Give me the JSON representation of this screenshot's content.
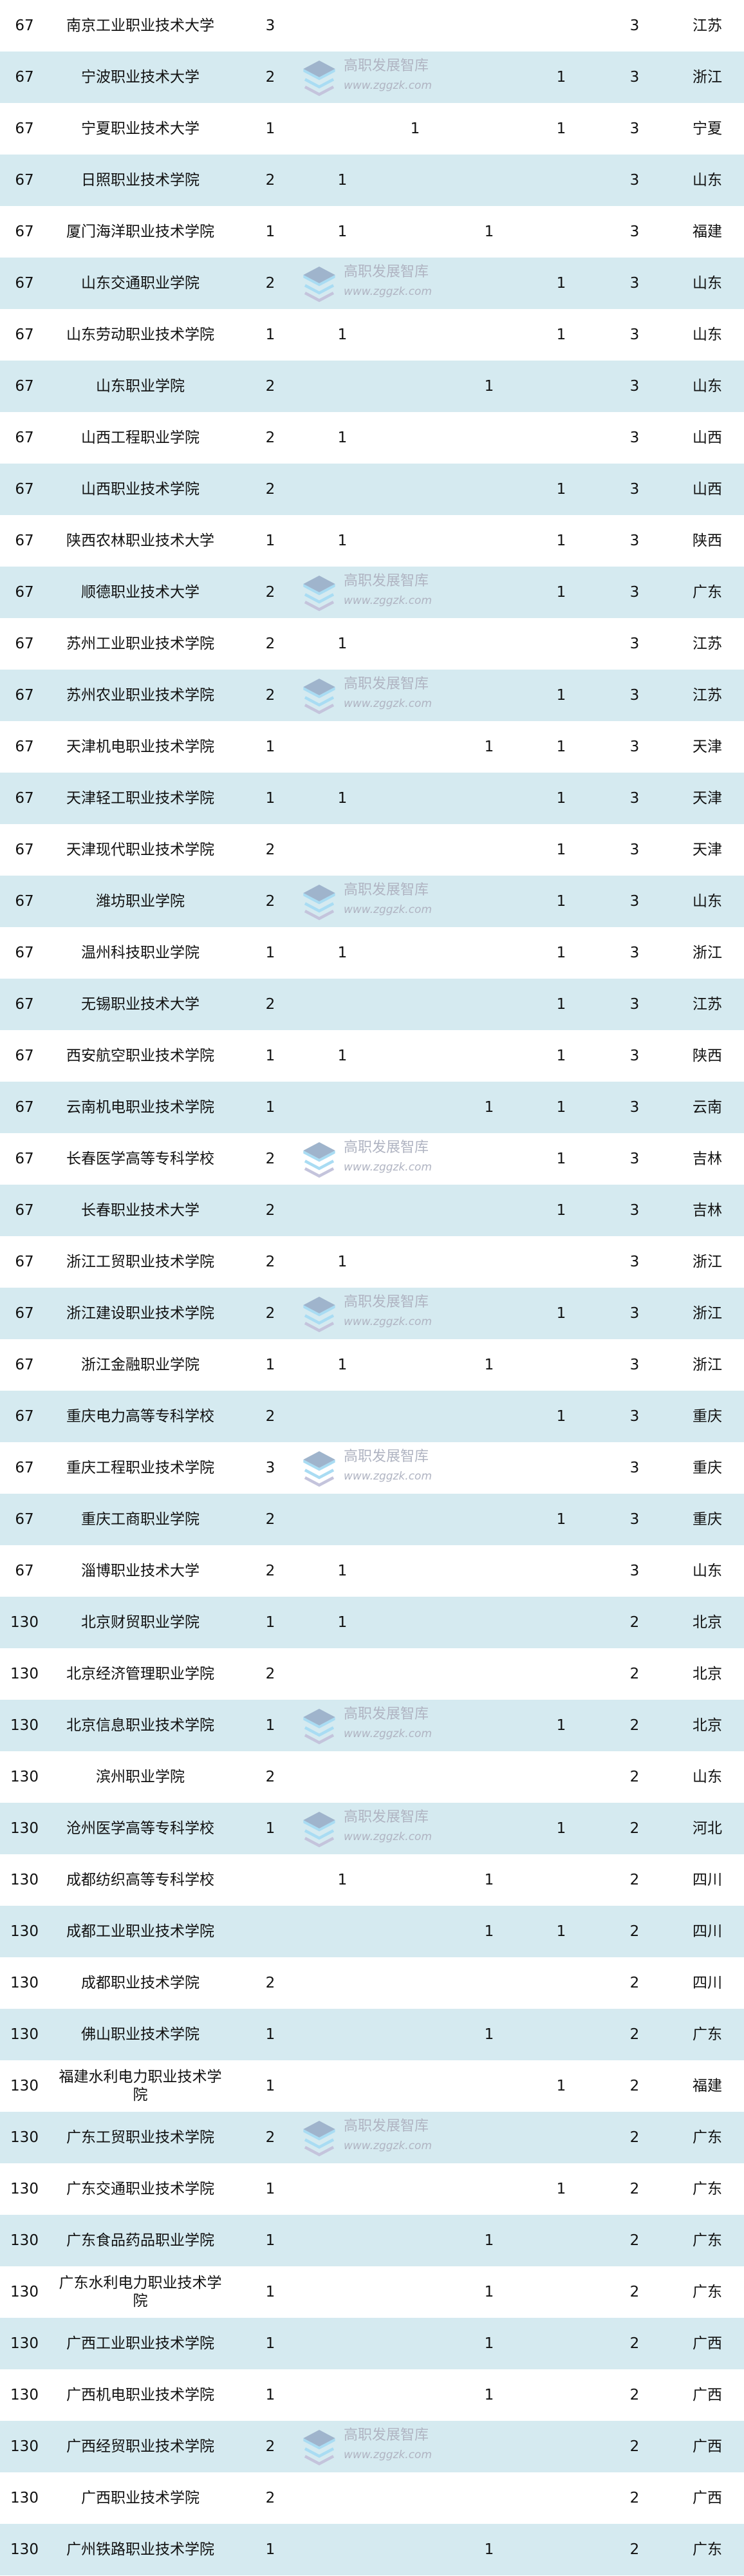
{
  "colors": {
    "row_alt": "#d5eaf0",
    "row": "#ffffff",
    "text": "#111111"
  },
  "watermark": {
    "title": "高职发展智库",
    "url": "www.zggzk.com",
    "icon": "stacked-layers-logo-icon"
  },
  "rows": [
    [
      "67",
      "南京工业职业技术大学",
      "3",
      "",
      "",
      "",
      "",
      "3",
      "江苏"
    ],
    [
      "67",
      "宁波职业技术大学",
      "2",
      "",
      "",
      "",
      "1",
      "3",
      "浙江"
    ],
    [
      "67",
      "宁夏职业技术大学",
      "1",
      "",
      "1",
      "",
      "1",
      "3",
      "宁夏"
    ],
    [
      "67",
      "日照职业技术学院",
      "2",
      "1",
      "",
      "",
      "",
      "3",
      "山东"
    ],
    [
      "67",
      "厦门海洋职业技术学院",
      "1",
      "1",
      "",
      "1",
      "",
      "3",
      "福建"
    ],
    [
      "67",
      "山东交通职业学院",
      "2",
      "",
      "",
      "",
      "1",
      "3",
      "山东"
    ],
    [
      "67",
      "山东劳动职业技术学院",
      "1",
      "1",
      "",
      "",
      "1",
      "3",
      "山东"
    ],
    [
      "67",
      "山东职业学院",
      "2",
      "",
      "",
      "1",
      "",
      "3",
      "山东"
    ],
    [
      "67",
      "山西工程职业学院",
      "2",
      "1",
      "",
      "",
      "",
      "3",
      "山西"
    ],
    [
      "67",
      "山西职业技术学院",
      "2",
      "",
      "",
      "",
      "1",
      "3",
      "山西"
    ],
    [
      "67",
      "陕西农林职业技术大学",
      "1",
      "1",
      "",
      "",
      "1",
      "3",
      "陕西"
    ],
    [
      "67",
      "顺德职业技术大学",
      "2",
      "",
      "",
      "",
      "1",
      "3",
      "广东"
    ],
    [
      "67",
      "苏州工业职业技术学院",
      "2",
      "1",
      "",
      "",
      "",
      "3",
      "江苏"
    ],
    [
      "67",
      "苏州农业职业技术学院",
      "2",
      "",
      "",
      "",
      "1",
      "3",
      "江苏"
    ],
    [
      "67",
      "天津机电职业技术学院",
      "1",
      "",
      "",
      "1",
      "1",
      "3",
      "天津"
    ],
    [
      "67",
      "天津轻工职业技术学院",
      "1",
      "1",
      "",
      "",
      "1",
      "3",
      "天津"
    ],
    [
      "67",
      "天津现代职业技术学院",
      "2",
      "",
      "",
      "",
      "1",
      "3",
      "天津"
    ],
    [
      "67",
      "潍坊职业学院",
      "2",
      "",
      "",
      "",
      "1",
      "3",
      "山东"
    ],
    [
      "67",
      "温州科技职业学院",
      "1",
      "1",
      "",
      "",
      "1",
      "3",
      "浙江"
    ],
    [
      "67",
      "无锡职业技术大学",
      "2",
      "",
      "",
      "",
      "1",
      "3",
      "江苏"
    ],
    [
      "67",
      "西安航空职业技术学院",
      "1",
      "1",
      "",
      "",
      "1",
      "3",
      "陕西"
    ],
    [
      "67",
      "云南机电职业技术学院",
      "1",
      "",
      "",
      "1",
      "1",
      "3",
      "云南"
    ],
    [
      "67",
      "长春医学高等专科学校",
      "2",
      "",
      "",
      "",
      "1",
      "3",
      "吉林"
    ],
    [
      "67",
      "长春职业技术大学",
      "2",
      "",
      "",
      "",
      "1",
      "3",
      "吉林"
    ],
    [
      "67",
      "浙江工贸职业技术学院",
      "2",
      "1",
      "",
      "",
      "",
      "3",
      "浙江"
    ],
    [
      "67",
      "浙江建设职业技术学院",
      "2",
      "",
      "",
      "",
      "1",
      "3",
      "浙江"
    ],
    [
      "67",
      "浙江金融职业学院",
      "1",
      "1",
      "",
      "1",
      "",
      "3",
      "浙江"
    ],
    [
      "67",
      "重庆电力高等专科学校",
      "2",
      "",
      "",
      "",
      "1",
      "3",
      "重庆"
    ],
    [
      "67",
      "重庆工程职业技术学院",
      "3",
      "",
      "",
      "",
      "",
      "3",
      "重庆"
    ],
    [
      "67",
      "重庆工商职业学院",
      "2",
      "",
      "",
      "",
      "1",
      "3",
      "重庆"
    ],
    [
      "67",
      "淄博职业技术大学",
      "2",
      "1",
      "",
      "",
      "",
      "3",
      "山东"
    ],
    [
      "130",
      "北京财贸职业学院",
      "1",
      "1",
      "",
      "",
      "",
      "2",
      "北京"
    ],
    [
      "130",
      "北京经济管理职业学院",
      "2",
      "",
      "",
      "",
      "",
      "2",
      "北京"
    ],
    [
      "130",
      "北京信息职业技术学院",
      "1",
      "",
      "",
      "",
      "1",
      "2",
      "北京"
    ],
    [
      "130",
      "滨州职业学院",
      "2",
      "",
      "",
      "",
      "",
      "2",
      "山东"
    ],
    [
      "130",
      "沧州医学高等专科学校",
      "1",
      "",
      "",
      "",
      "1",
      "2",
      "河北"
    ],
    [
      "130",
      "成都纺织高等专科学校",
      "",
      "1",
      "",
      "1",
      "",
      "2",
      "四川"
    ],
    [
      "130",
      "成都工业职业技术学院",
      "",
      "",
      "",
      "1",
      "1",
      "2",
      "四川"
    ],
    [
      "130",
      "成都职业技术学院",
      "2",
      "",
      "",
      "",
      "",
      "2",
      "四川"
    ],
    [
      "130",
      "佛山职业技术学院",
      "1",
      "",
      "",
      "1",
      "",
      "2",
      "广东"
    ],
    [
      "130",
      "福建水利电力职业技术学院",
      "1",
      "",
      "",
      "",
      "1",
      "2",
      "福建"
    ],
    [
      "130",
      "广东工贸职业技术学院",
      "2",
      "",
      "",
      "",
      "",
      "2",
      "广东"
    ],
    [
      "130",
      "广东交通职业技术学院",
      "1",
      "",
      "",
      "",
      "1",
      "2",
      "广东"
    ],
    [
      "130",
      "广东食品药品职业学院",
      "1",
      "",
      "",
      "1",
      "",
      "2",
      "广东"
    ],
    [
      "130",
      "广东水利电力职业技术学院",
      "1",
      "",
      "",
      "1",
      "",
      "2",
      "广东"
    ],
    [
      "130",
      "广西工业职业技术学院",
      "1",
      "",
      "",
      "1",
      "",
      "2",
      "广西"
    ],
    [
      "130",
      "广西机电职业技术学院",
      "1",
      "",
      "",
      "1",
      "",
      "2",
      "广西"
    ],
    [
      "130",
      "广西经贸职业技术学院",
      "2",
      "",
      "",
      "",
      "",
      "2",
      "广西"
    ],
    [
      "130",
      "广西职业技术学院",
      "2",
      "",
      "",
      "",
      "",
      "2",
      "广西"
    ],
    [
      "130",
      "广州铁路职业技术学院",
      "1",
      "",
      "",
      "1",
      "",
      "2",
      "广东"
    ]
  ]
}
